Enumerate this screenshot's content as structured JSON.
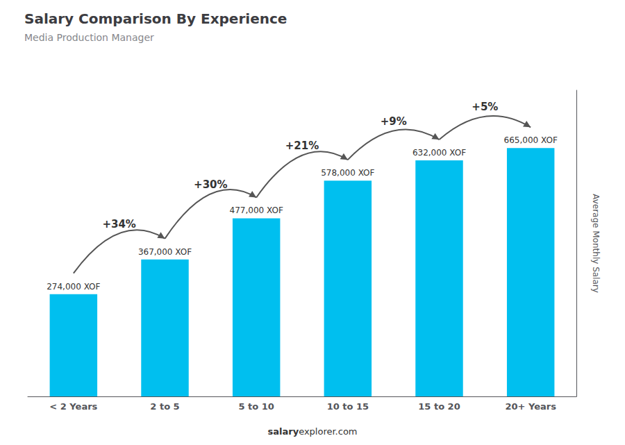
{
  "chart_data": {
    "type": "bar",
    "title": "Salary Comparison By Experience",
    "subtitle": "Media Production Manager",
    "categories": [
      "< 2 Years",
      "2 to 5",
      "5 to 10",
      "10 to 15",
      "15 to 20",
      "20+ Years"
    ],
    "values": [
      274000,
      367000,
      477000,
      578000,
      632000,
      665000
    ],
    "value_labels": [
      "274,000 XOF",
      "367,000 XOF",
      "477,000 XOF",
      "578,000 XOF",
      "632,000 XOF",
      "665,000 XOF"
    ],
    "data_labels": true,
    "annotations": [
      "+34%",
      "+30%",
      "+21%",
      "+9%",
      "+5%"
    ],
    "ylabel": "Average Monthly Salary",
    "footer": [
      "salary",
      "explorer.com"
    ],
    "color": "#00bfef",
    "ylim": [
      0,
      820000
    ],
    "grid": false,
    "tick_labels": "x"
  }
}
